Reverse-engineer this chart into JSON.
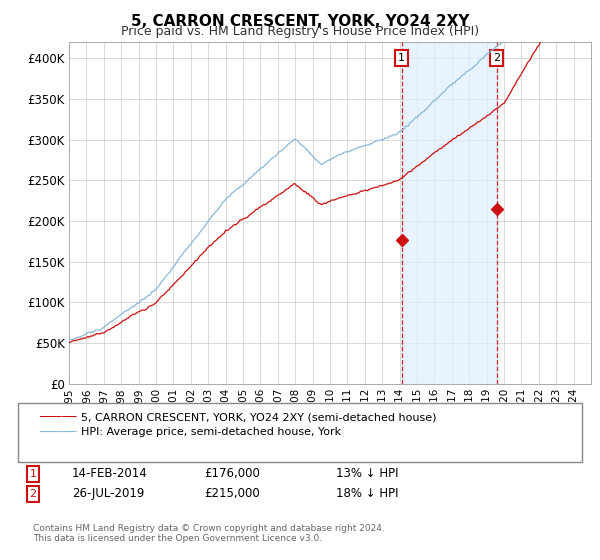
{
  "title": "5, CARRON CRESCENT, YORK, YO24 2XY",
  "subtitle": "Price paid vs. HM Land Registry's House Price Index (HPI)",
  "ylabel_ticks": [
    "£0",
    "£50K",
    "£100K",
    "£150K",
    "£200K",
    "£250K",
    "£300K",
    "£350K",
    "£400K"
  ],
  "ylim": [
    0,
    420000
  ],
  "xlim_start": 1995,
  "xlim_end": 2025,
  "hpi_color": "#89b8d8",
  "price_color": "#cc1111",
  "shade_color": "#ddeeff",
  "marker1_date": 2014.12,
  "marker2_date": 2019.58,
  "marker1_price": 176000,
  "marker2_price": 215000,
  "legend_label1": "5, CARRON CRESCENT, YORK, YO24 2XY (semi-detached house)",
  "legend_label2": "HPI: Average price, semi-detached house, York",
  "annotation1_date": "14-FEB-2014",
  "annotation1_price": "£176,000",
  "annotation1_pct": "13% ↓ HPI",
  "annotation2_date": "26-JUL-2019",
  "annotation2_price": "£215,000",
  "annotation2_pct": "18% ↓ HPI",
  "footnote": "Contains HM Land Registry data © Crown copyright and database right 2024.\nThis data is licensed under the Open Government Licence v3.0.",
  "background_color": "#ffffff",
  "grid_color": "#cccccc"
}
